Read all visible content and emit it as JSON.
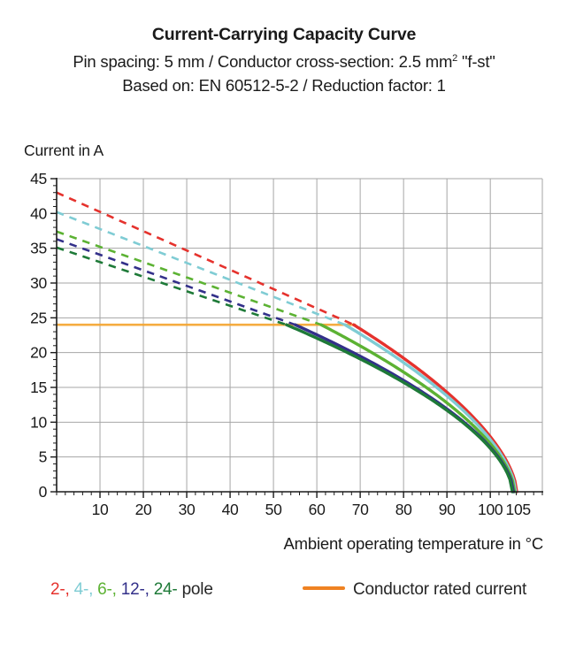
{
  "title": "Current-Carrying Capacity Curve",
  "subtitle2": {
    "pre_sup": "Pin spacing: 5 mm / Conductor cross-section: 2.5 mm",
    "sup": "2",
    "post_sup": " \"f-st\""
  },
  "subtitle3": "Based on: EN 60512-5-2 / Reduction factor: 1",
  "legend": {
    "pole_items": [
      {
        "label": "2-,",
        "color": "#e5322d"
      },
      {
        "label": "4-,",
        "color": "#7fccd4"
      },
      {
        "label": "6-,",
        "color": "#5cb233"
      },
      {
        "label": "12-,",
        "color": "#33308a"
      },
      {
        "label": "24-",
        "color": "#1e7a38"
      }
    ],
    "pole_suffix": "pole",
    "pole_suffix_color": "#262626",
    "rated": {
      "label": "Conductor rated current",
      "swatch_color": "#ef8222"
    }
  },
  "chart_data": {
    "type": "line",
    "title": "Current-Carrying Capacity Curve",
    "x_axis": {
      "label": "Ambient operating temperature in °C",
      "min": 0,
      "max": 112,
      "major_ticks": [
        10,
        20,
        30,
        40,
        50,
        60,
        70,
        80,
        90,
        100,
        105
      ],
      "gridline_ticks": [
        10,
        20,
        30,
        40,
        50,
        60,
        70,
        80,
        90,
        100
      ],
      "minor_tick_step": 2
    },
    "y_axis": {
      "label": "Current in A",
      "min": 0,
      "max": 45,
      "major_tick_step": 5,
      "minor_tick_step": 1
    },
    "grid_color": "#a6a6a6",
    "axis_color": "#1a1a1a",
    "rated_current_line": {
      "label": "Conductor rated current",
      "value_A": 24,
      "from_C": 0,
      "to_C": 69,
      "color": "#f5a42c"
    },
    "series": [
      {
        "name": "2-pole",
        "color": "#e5322d",
        "current_at_0C_A": 43.0,
        "meets_rated_at_C": 68.5,
        "zero_current_at_C": 106.1,
        "falloff_exponent": 0.61
      },
      {
        "name": "4-pole",
        "color": "#7fccd4",
        "current_at_0C_A": 40.2,
        "meets_rated_at_C": 66.5,
        "zero_current_at_C": 105.85,
        "falloff_exponent": 0.61
      },
      {
        "name": "6-pole",
        "color": "#5cb233",
        "current_at_0C_A": 37.4,
        "meets_rated_at_C": 61.0,
        "zero_current_at_C": 105.6,
        "falloff_exponent": 0.6
      },
      {
        "name": "12-pole",
        "color": "#33308a",
        "current_at_0C_A": 36.3,
        "meets_rated_at_C": 55.0,
        "zero_current_at_C": 105.35,
        "falloff_exponent": 0.59
      },
      {
        "name": "24-pole",
        "color": "#1e7a38",
        "current_at_0C_A": 35.1,
        "meets_rated_at_C": 53.0,
        "zero_current_at_C": 105.1,
        "falloff_exponent": 0.58
      }
    ],
    "line_style": {
      "above_rated": "dashed",
      "below_rated": "solid"
    },
    "legend_position": "bottom"
  }
}
